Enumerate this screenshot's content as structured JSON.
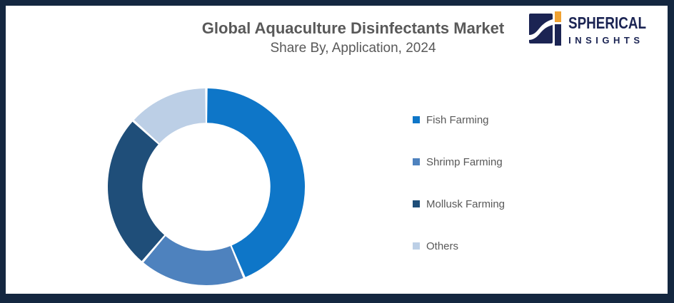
{
  "frame": {
    "border_color": "#142740",
    "background": "#ffffff"
  },
  "header": {
    "title_color": "#595959"
  },
  "logo": {
    "brand_line1": "SPHERICAL",
    "brand_line2": "INSIGHTS",
    "navy": "#1b2453",
    "orange": "#f0a232",
    "swoosh": "#ffffff"
  },
  "chart_data": {
    "type": "pie",
    "subtype": "donut",
    "title": "Global Aquaculture Disinfectants Market",
    "subtitle": "Share By, Application, 2024",
    "categories": [
      "Fish Farming",
      "Shrimp Farming",
      "Mollusk Farming",
      "Others"
    ],
    "values": [
      43.7,
      17.5,
      25.5,
      13.3
    ],
    "unit": "percent_share",
    "colors": [
      "#0e76c8",
      "#4e82be",
      "#1f4e79",
      "#bccfe6"
    ],
    "start_angle_deg": 0,
    "direction": "clockwise",
    "inner_radius_ratio": 0.65,
    "segment_gap_deg": 1.4,
    "legend_position": "right",
    "data_labels": false
  },
  "legend": {
    "items": [
      {
        "label": "Fish Farming",
        "color": "#0e76c8"
      },
      {
        "label": "Shrimp Farming",
        "color": "#4e82be"
      },
      {
        "label": "Mollusk Farming",
        "color": "#1f4e79"
      },
      {
        "label": "Others",
        "color": "#bccfe6"
      }
    ],
    "label_color": "#595959"
  }
}
